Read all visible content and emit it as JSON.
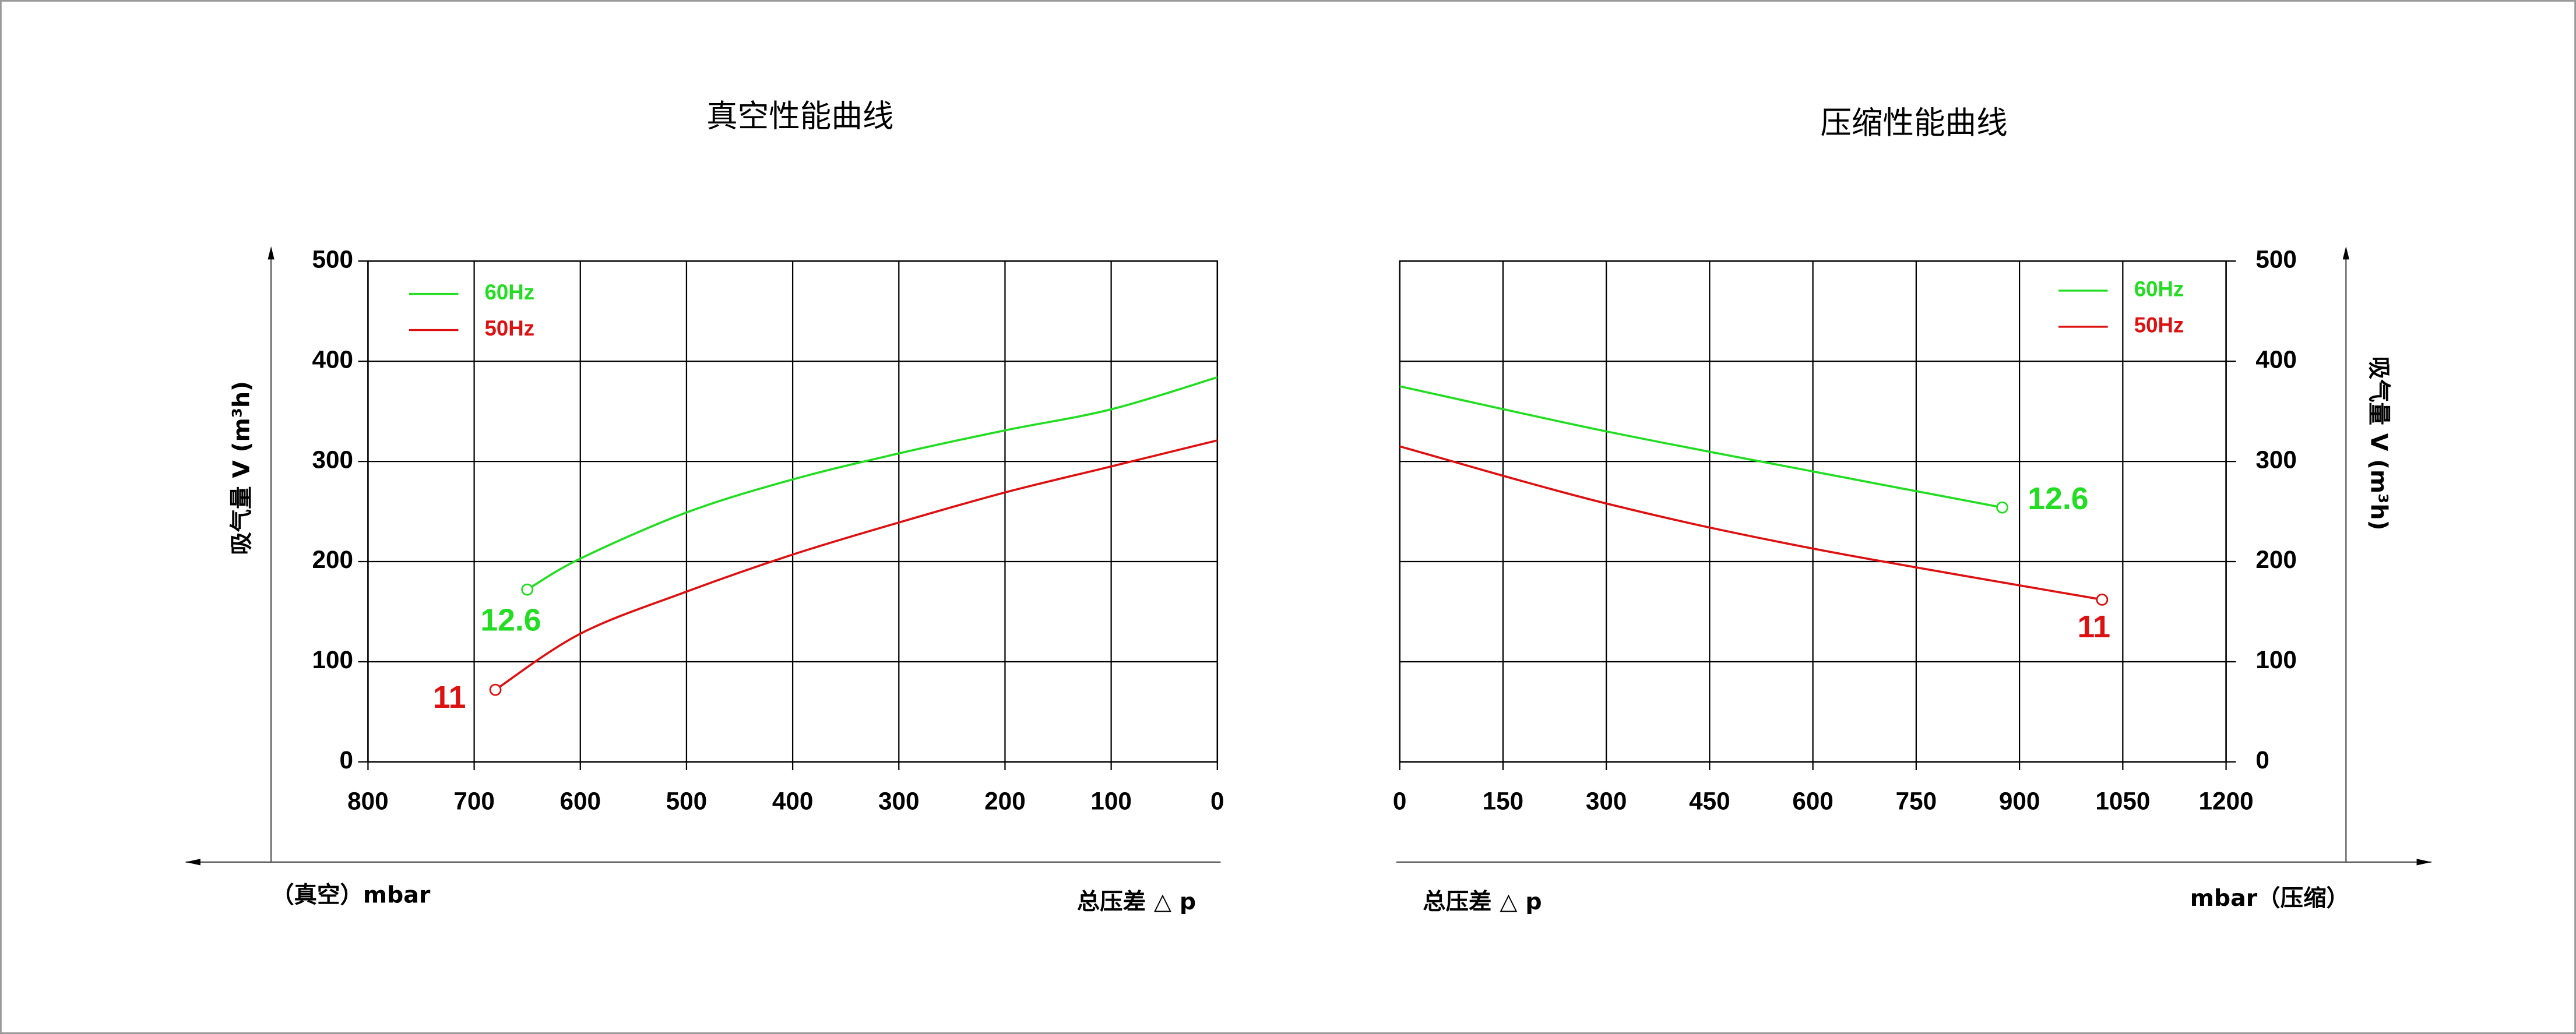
{
  "chart_data": [
    {
      "type": "line",
      "title": "真空性能曲线",
      "ylabel": "吸气量 V (m³h)",
      "xlabel": "总压差 △ p",
      "unit_label": "（真空）mbar",
      "xlim": [
        800,
        0
      ],
      "xticks": [
        800,
        700,
        600,
        500,
        400,
        300,
        200,
        100,
        0
      ],
      "ylim": [
        0,
        500
      ],
      "yticks": [
        0,
        100,
        200,
        300,
        400,
        500
      ],
      "grid": true,
      "legend": "upper left",
      "y_axis_side": "left",
      "series": [
        {
          "name": "60Hz",
          "color": "#22dd22",
          "annotation": "12.6",
          "x": [
            650,
            600,
            500,
            400,
            300,
            200,
            100,
            0
          ],
          "values": [
            172,
            203,
            249,
            282,
            308,
            331,
            352,
            384
          ]
        },
        {
          "name": "50Hz",
          "color": "#dd1111",
          "annotation": "11",
          "x": [
            680,
            600,
            500,
            400,
            300,
            200,
            100,
            0
          ],
          "values": [
            72,
            128,
            170,
            207,
            239,
            269,
            295,
            321
          ]
        }
      ]
    },
    {
      "type": "line",
      "title": "压缩性能曲线",
      "ylabel": "吸气量 V (m³h)",
      "xlabel": "总压差 △ p",
      "unit_label": "mbar（压缩）",
      "xlim": [
        0,
        1200
      ],
      "xticks": [
        0,
        150,
        300,
        450,
        600,
        750,
        900,
        1050,
        1200
      ],
      "ylim": [
        0,
        500
      ],
      "yticks": [
        0,
        100,
        200,
        300,
        400,
        500
      ],
      "grid": true,
      "legend": "upper right",
      "y_axis_side": "right",
      "series": [
        {
          "name": "60Hz",
          "color": "#22dd22",
          "annotation": "12.6",
          "x": [
            0,
            300,
            600,
            875
          ],
          "values": [
            375,
            330,
            290,
            254
          ]
        },
        {
          "name": "50Hz",
          "color": "#dd1111",
          "annotation": "11",
          "x": [
            0,
            300,
            600,
            1020
          ],
          "values": [
            315,
            258,
            213,
            162
          ]
        }
      ]
    }
  ]
}
